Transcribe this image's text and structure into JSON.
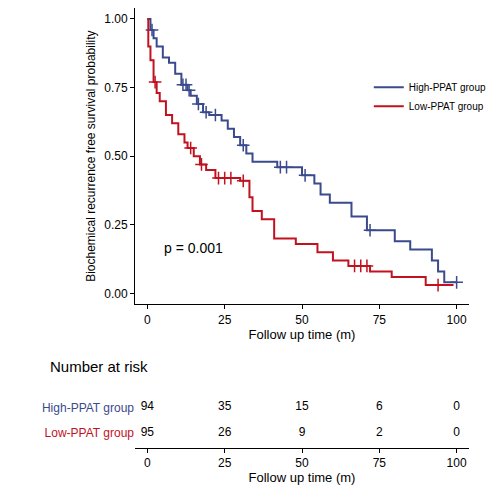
{
  "chart_data": {
    "type": "survival",
    "x_label": "Follow up time (m)",
    "y_label": "Biochemical recurrence free survival probability",
    "annotations": [
      {
        "text": "p = 0.001"
      }
    ],
    "legend": "top-right",
    "grid": false,
    "xlim": [
      -4,
      104
    ],
    "xticks": [
      0,
      25,
      50,
      75,
      100
    ],
    "ylim": [
      -0.04,
      1.04
    ],
    "yticks": [
      {
        "value": 0,
        "label": "0.00"
      },
      {
        "value": 0.25,
        "label": "0.25"
      },
      {
        "value": 0.5,
        "label": "0.50"
      },
      {
        "value": 0.75,
        "label": "0.75"
      },
      {
        "value": 1,
        "label": "1.00"
      }
    ],
    "series": [
      {
        "name": "High-PPAT group",
        "color": "#3B4A8C",
        "line_style": "step",
        "marker": "+",
        "x": [
          0,
          1,
          2,
          3,
          5,
          7,
          9,
          11,
          13,
          14,
          16,
          18,
          20,
          24,
          26,
          28,
          30,
          32,
          34,
          42,
          50,
          54,
          56,
          59,
          66,
          71,
          80,
          85,
          92,
          94,
          96,
          100
        ],
        "values": [
          1.0,
          0.96,
          0.93,
          0.9,
          0.86,
          0.84,
          0.8,
          0.76,
          0.74,
          0.72,
          0.69,
          0.66,
          0.65,
          0.63,
          0.6,
          0.57,
          0.54,
          0.51,
          0.48,
          0.46,
          0.43,
          0.4,
          0.36,
          0.33,
          0.28,
          0.23,
          0.19,
          0.16,
          0.12,
          0.08,
          0.04,
          0.04
        ],
        "censor_x": [
          1.5,
          11.5,
          12.5,
          13.5,
          16.5,
          19,
          22,
          31,
          43,
          45,
          51,
          72,
          100
        ],
        "censor_values": [
          0.96,
          0.76,
          0.76,
          0.74,
          0.69,
          0.66,
          0.65,
          0.54,
          0.46,
          0.46,
          0.43,
          0.23,
          0.04
        ]
      },
      {
        "name": "Low-PPAT group",
        "color": "#C1121F",
        "line_style": "step",
        "marker": "+",
        "x": [
          0,
          0.3,
          1,
          2,
          3,
          4,
          6,
          8,
          10,
          12,
          13,
          15,
          17,
          19,
          22,
          30,
          33,
          34,
          37,
          41,
          48,
          55,
          60,
          65,
          72,
          79,
          90,
          99
        ],
        "values": [
          1.0,
          0.9,
          0.85,
          0.77,
          0.73,
          0.7,
          0.65,
          0.62,
          0.58,
          0.55,
          0.53,
          0.5,
          0.47,
          0.45,
          0.42,
          0.41,
          0.35,
          0.3,
          0.27,
          0.2,
          0.18,
          0.15,
          0.12,
          0.1,
          0.08,
          0.06,
          0.03,
          0.03
        ],
        "censor_x": [
          2.5,
          14,
          17.5,
          23,
          25,
          27,
          31,
          67,
          69,
          71,
          94
        ],
        "censor_values": [
          0.77,
          0.53,
          0.47,
          0.42,
          0.42,
          0.42,
          0.41,
          0.1,
          0.1,
          0.1,
          0.03
        ]
      }
    ],
    "risk_table": {
      "title": "Number at risk",
      "x_label": "Follow up time (m)",
      "times": [
        0,
        25,
        50,
        75,
        100
      ],
      "rows": [
        {
          "name": "High-PPAT group",
          "color": "#3B4A8C",
          "values": [
            94,
            35,
            15,
            6,
            0
          ]
        },
        {
          "name": "Low-PPAT group",
          "color": "#C1121F",
          "values": [
            95,
            26,
            9,
            2,
            0
          ]
        }
      ]
    }
  }
}
